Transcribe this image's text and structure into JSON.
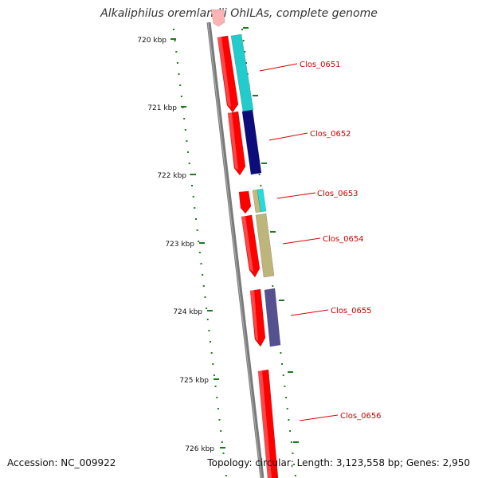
{
  "title": "Alkaliphilus oremlandii OhILAs, complete genome",
  "footer": {
    "accession": "Accession: NC_009922",
    "summary": "Topology: circular; Length: 3,123,558 bp; Genes: 2,950"
  },
  "colors": {
    "backbone": "#7a7a7a",
    "tick": "#1f7a1f",
    "gene_label": "#cc0000",
    "label_line": "#dd0000",
    "cds": "#ff0000",
    "cds_faded": "#ffb3b3"
  },
  "ticks": [
    {
      "label": "720 kbp"
    },
    {
      "label": "721 kbp"
    },
    {
      "label": "722 kbp"
    },
    {
      "label": "723 kbp"
    },
    {
      "label": "724 kbp"
    },
    {
      "label": "725 kbp"
    },
    {
      "label": "726 kbp"
    }
  ],
  "genes": [
    {
      "name": "Clos_0651",
      "category_color": "#22cccc"
    },
    {
      "name": "Clos_0652",
      "category_color": "#0c0c7a"
    },
    {
      "name": "Clos_0653",
      "category_color": "#c8b87a",
      "secondary_color": "#22dddd"
    },
    {
      "name": "Clos_0654",
      "category_color": "#bdb57a"
    },
    {
      "name": "Clos_0655",
      "category_color": "#55508f"
    },
    {
      "name": "Clos_0656",
      "category_color": null
    }
  ]
}
